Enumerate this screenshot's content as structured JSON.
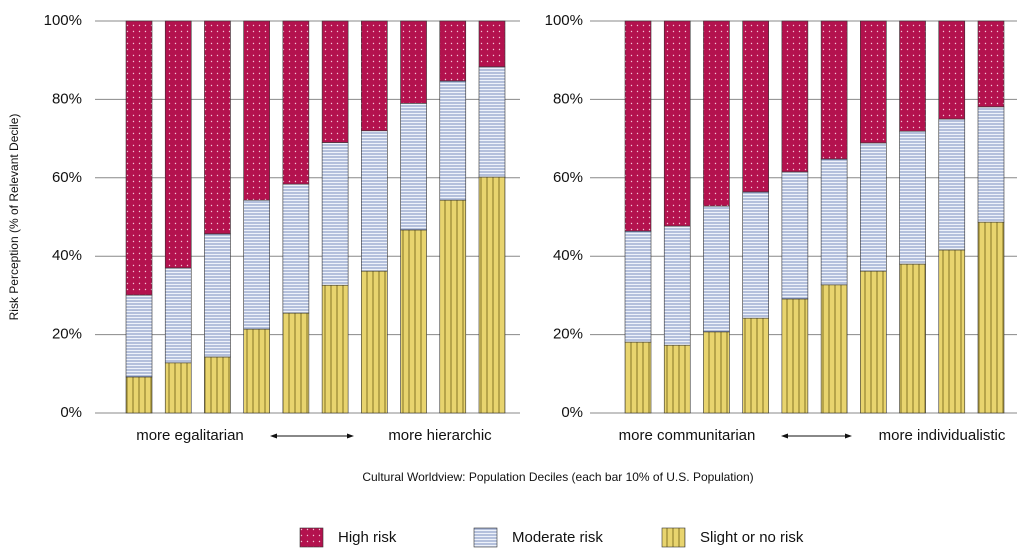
{
  "chart_data": [
    {
      "type": "bar",
      "stacked": true,
      "ylabel": "Risk Perception (% of Relevant Decile)",
      "xlabel": "Cultural Worldview: Population Deciles (each bar 10% of U.S. Population)",
      "annotations": [
        "more egalitarian",
        "more hierarchic"
      ],
      "categories": [
        null,
        null,
        null,
        null,
        null,
        null,
        null,
        null,
        null,
        null
      ],
      "series": [
        {
          "name": "Slight or no risk",
          "color": "#e8d46e",
          "pattern": "vlines",
          "values": [
            9.2,
            12.8,
            14.3,
            21.4,
            25.5,
            32.6,
            36.2,
            46.7,
            54.3,
            60.2
          ]
        },
        {
          "name": "Moderate risk",
          "color": "#eef2fa",
          "pattern": "hlines",
          "values": [
            20.9,
            24.2,
            31.4,
            32.9,
            32.9,
            36.4,
            35.8,
            32.3,
            30.4,
            28.1
          ]
        },
        {
          "name": "High risk",
          "color": "#b3124e",
          "pattern": "dots",
          "values": [
            69.9,
            63.0,
            54.3,
            45.7,
            41.6,
            31.0,
            28.0,
            21.0,
            15.3,
            11.7
          ]
        }
      ],
      "ylim": [
        0,
        100
      ],
      "yticks": [
        {
          "value": 0,
          "label": "0%"
        },
        {
          "value": 20,
          "label": "20%"
        },
        {
          "value": 40,
          "label": "40%"
        },
        {
          "value": 60,
          "label": "60%"
        },
        {
          "value": 80,
          "label": "80%"
        },
        {
          "value": 100,
          "label": "100%"
        }
      ],
      "grid": true
    },
    {
      "type": "bar",
      "stacked": true,
      "annotations": [
        "more communitarian",
        "more individualistic"
      ],
      "categories": [
        null,
        null,
        null,
        null,
        null,
        null,
        null,
        null,
        null,
        null
      ],
      "series": [
        {
          "color": "#e8d46e",
          "pattern": "vlines",
          "values": [
            18.1,
            17.3,
            20.7,
            24.2,
            29.1,
            32.7,
            36.2,
            38.0,
            41.6,
            48.7
          ]
        },
        {
          "color": "#eef2fa",
          "pattern": "hlines",
          "values": [
            28.3,
            30.4,
            32.1,
            32.2,
            32.4,
            32.1,
            32.7,
            33.9,
            33.4,
            29.4
          ]
        },
        {
          "color": "#b3124e",
          "pattern": "dots",
          "values": [
            53.6,
            52.3,
            47.2,
            43.6,
            38.5,
            35.2,
            31.1,
            28.1,
            25.0,
            21.9
          ]
        }
      ],
      "ylim": [
        0,
        100
      ],
      "yticks": [
        {
          "value": 0,
          "label": "0%"
        },
        {
          "value": 20,
          "label": "20%"
        },
        {
          "value": 40,
          "label": "40%"
        },
        {
          "value": 60,
          "label": "60%"
        },
        {
          "value": 80,
          "label": "80%"
        },
        {
          "value": 100,
          "label": "100%"
        }
      ],
      "grid": true
    }
  ]
}
